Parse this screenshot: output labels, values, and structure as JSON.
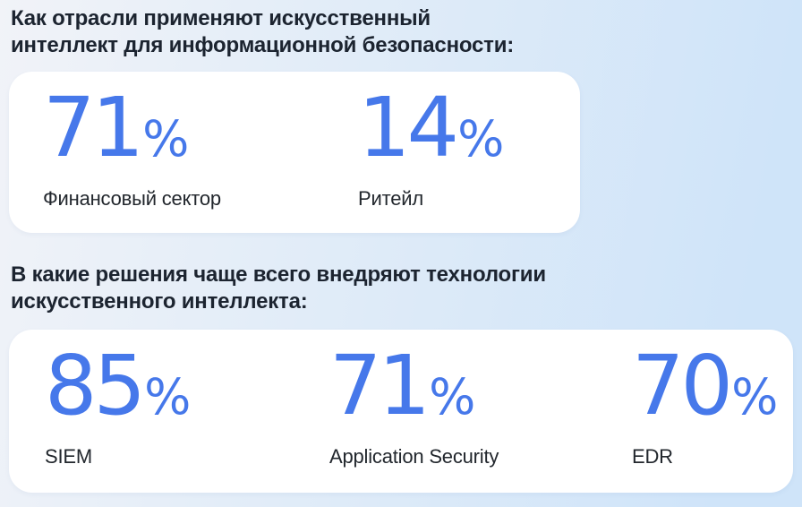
{
  "colors": {
    "accent_blue": "#4678ea",
    "heading_text": "#1c2430",
    "label_text": "#22272d",
    "card_background": "#ffffff",
    "page_gradient_start": "#f1f3f8",
    "page_gradient_end": "#cfe4f9"
  },
  "sections": [
    {
      "heading": "Как отрасли применяют искусственный интеллект для информационной безопасности:",
      "heading_lines": [
        "Как отрасли применяют искусственный",
        "интеллект для информационной безопасности:"
      ],
      "stats": [
        {
          "value": "71",
          "unit": "%",
          "label": "Финансовый сектор"
        },
        {
          "value": "14",
          "unit": "%",
          "label": "Ритейл"
        }
      ]
    },
    {
      "heading": "В какие решения чаще всего внедряют технологии искусственного интеллекта:",
      "heading_lines": [
        "В какие решения чаще всего внедряют технологии",
        "искусственного интеллекта:"
      ],
      "stats": [
        {
          "value": "85",
          "unit": "%",
          "label": "SIEM"
        },
        {
          "value": "71",
          "unit": "%",
          "label": "Application Security"
        },
        {
          "value": "70",
          "unit": "%",
          "label": "EDR"
        }
      ]
    }
  ],
  "chart_data": [
    {
      "type": "bar",
      "title": "Как отрасли применяют искусственный интеллект для информационной безопасности:",
      "categories": [
        "Финансовый сектор",
        "Ритейл"
      ],
      "values": [
        71,
        14
      ],
      "unit": "%",
      "xlabel": "",
      "ylabel": "",
      "ylim": [
        0,
        100
      ],
      "legend": false,
      "grid": false
    },
    {
      "type": "bar",
      "title": "В какие решения чаще всего внедряют технологии искусственного интеллекта:",
      "categories": [
        "SIEM",
        "Application Security",
        "EDR"
      ],
      "values": [
        85,
        71,
        70
      ],
      "unit": "%",
      "xlabel": "",
      "ylabel": "",
      "ylim": [
        0,
        100
      ],
      "legend": false,
      "grid": false
    }
  ]
}
